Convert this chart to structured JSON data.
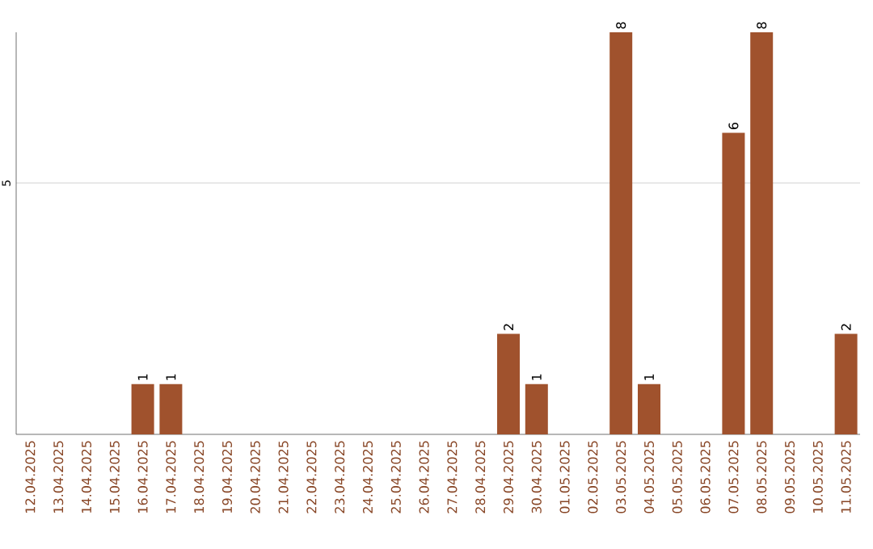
{
  "chart_data": {
    "type": "bar",
    "categories": [
      "12.04.2025",
      "13.04.2025",
      "14.04.2025",
      "15.04.2025",
      "16.04.2025",
      "17.04.2025",
      "18.04.2025",
      "19.04.2025",
      "20.04.2025",
      "21.04.2025",
      "22.04.2025",
      "23.04.2025",
      "24.04.2025",
      "25.04.2025",
      "26.04.2025",
      "27.04.2025",
      "28.04.2025",
      "29.04.2025",
      "30.04.2025",
      "01.05.2025",
      "02.05.2025",
      "03.05.2025",
      "04.05.2025",
      "05.05.2025",
      "06.05.2025",
      "07.05.2025",
      "08.05.2025",
      "09.05.2025",
      "10.05.2025",
      "11.05.2025"
    ],
    "values": [
      0,
      0,
      0,
      0,
      1,
      1,
      0,
      0,
      0,
      0,
      0,
      0,
      0,
      0,
      0,
      0,
      0,
      2,
      1,
      0,
      0,
      8,
      1,
      0,
      0,
      6,
      8,
      0,
      0,
      2
    ],
    "value_labels": [
      null,
      null,
      null,
      null,
      "1",
      "1",
      null,
      null,
      null,
      null,
      null,
      null,
      null,
      null,
      null,
      null,
      null,
      "2",
      "1",
      null,
      null,
      "8",
      "1",
      null,
      null,
      "6",
      "8",
      null,
      null,
      "2"
    ],
    "color": "#a0522d",
    "ylim": [
      0,
      8
    ],
    "yticks": [
      5
    ],
    "grid": "y"
  }
}
